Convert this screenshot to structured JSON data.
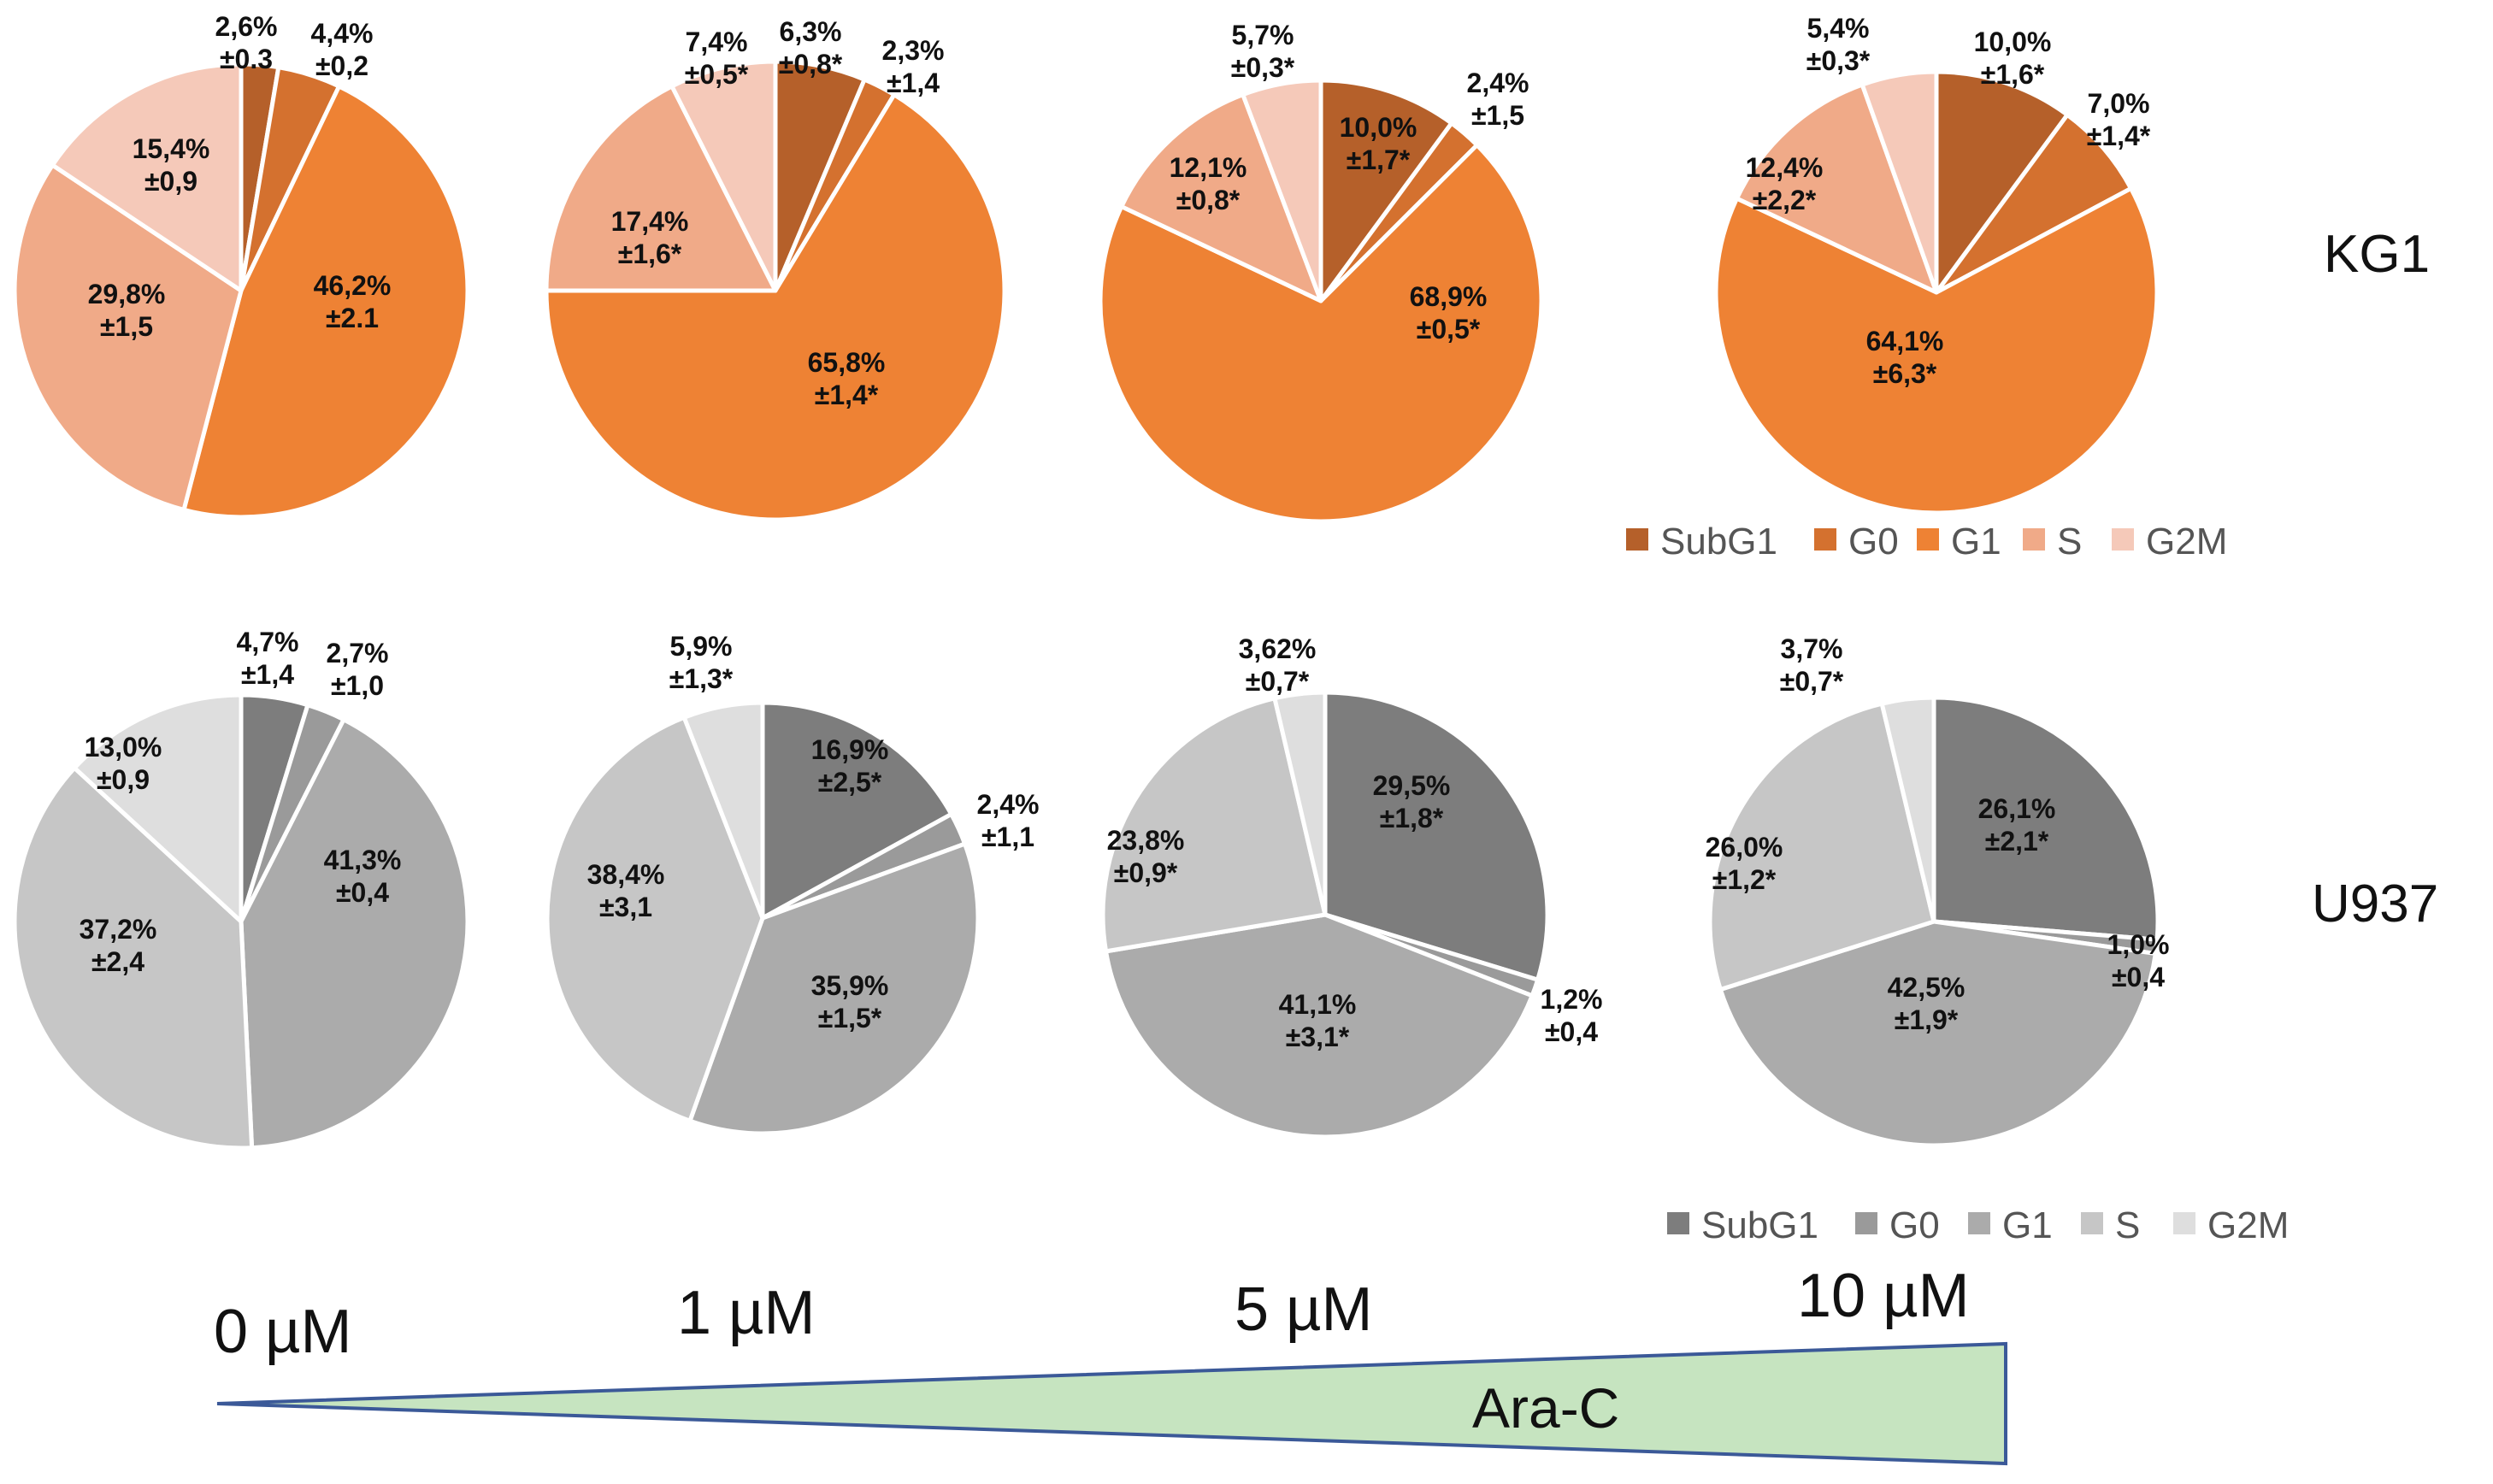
{
  "series_order": [
    "SubG1",
    "G0",
    "G1",
    "S",
    "G2M"
  ],
  "chart_data": [
    {
      "type": "pie",
      "row": "KG1",
      "dose": "0 µM",
      "slices": [
        {
          "name": "SubG1",
          "value": 2.6,
          "label": "2,6%",
          "sd": "±0.3"
        },
        {
          "name": "G0",
          "value": 4.4,
          "label": "4,4%",
          "sd": "±0,2"
        },
        {
          "name": "G1",
          "value": 46.2,
          "label": "46,2%",
          "sd": "±2.1"
        },
        {
          "name": "S",
          "value": 29.8,
          "label": "29,8%",
          "sd": "±1,5"
        },
        {
          "name": "G2M",
          "value": 15.4,
          "label": "15,4%",
          "sd": "±0,9"
        }
      ]
    },
    {
      "type": "pie",
      "row": "KG1",
      "dose": "1 µM",
      "slices": [
        {
          "name": "SubG1",
          "value": 6.3,
          "label": "6,3%",
          "sd": "±0,8*"
        },
        {
          "name": "G0",
          "value": 2.3,
          "label": "2,3%",
          "sd": "±1,4"
        },
        {
          "name": "G1",
          "value": 65.8,
          "label": "65,8%",
          "sd": "±1,4*"
        },
        {
          "name": "S",
          "value": 17.4,
          "label": "17,4%",
          "sd": "±1,6*"
        },
        {
          "name": "G2M",
          "value": 7.4,
          "label": "7,4%",
          "sd": "±0,5*"
        }
      ]
    },
    {
      "type": "pie",
      "row": "KG1",
      "dose": "5 µM",
      "slices": [
        {
          "name": "SubG1",
          "value": 10.0,
          "label": "10,0%",
          "sd": "±1,7*"
        },
        {
          "name": "G0",
          "value": 2.4,
          "label": "2,4%",
          "sd": "±1,5"
        },
        {
          "name": "G1",
          "value": 68.9,
          "label": "68,9%",
          "sd": "±0,5*"
        },
        {
          "name": "S",
          "value": 12.1,
          "label": "12,1%",
          "sd": "±0,8*"
        },
        {
          "name": "G2M",
          "value": 5.7,
          "label": "5,7%",
          "sd": "±0,3*"
        }
      ]
    },
    {
      "type": "pie",
      "row": "KG1",
      "dose": "10 µM",
      "slices": [
        {
          "name": "SubG1",
          "value": 10.0,
          "label": "10,0%",
          "sd": "±1,6*"
        },
        {
          "name": "G0",
          "value": 7.0,
          "label": "7,0%",
          "sd": "±1,4*"
        },
        {
          "name": "G1",
          "value": 64.1,
          "label": "64,1%",
          "sd": "±6,3*"
        },
        {
          "name": "S",
          "value": 12.4,
          "label": "12,4%",
          "sd": "±2,2*"
        },
        {
          "name": "G2M",
          "value": 5.4,
          "label": "5,4%",
          "sd": "±0,3*"
        }
      ]
    },
    {
      "type": "pie",
      "row": "U937",
      "dose": "0 µM",
      "slices": [
        {
          "name": "SubG1",
          "value": 4.7,
          "label": "4,7%",
          "sd": "±1,4"
        },
        {
          "name": "G0",
          "value": 2.7,
          "label": "2,7%",
          "sd": "±1,0"
        },
        {
          "name": "G1",
          "value": 41.3,
          "label": "41,3%",
          "sd": "±0,4"
        },
        {
          "name": "S",
          "value": 37.2,
          "label": "37,2%",
          "sd": "±2,4"
        },
        {
          "name": "G2M",
          "value": 13.0,
          "label": "13,0%",
          "sd": "±0,9"
        }
      ]
    },
    {
      "type": "pie",
      "row": "U937",
      "dose": "1 µM",
      "slices": [
        {
          "name": "SubG1",
          "value": 16.9,
          "label": "16,9%",
          "sd": "±2,5*"
        },
        {
          "name": "G0",
          "value": 2.4,
          "label": "2,4%",
          "sd": "±1,1"
        },
        {
          "name": "G1",
          "value": 35.9,
          "label": "35,9%",
          "sd": "±1,5*"
        },
        {
          "name": "S",
          "value": 38.4,
          "label": "38,4%",
          "sd": "±3,1"
        },
        {
          "name": "G2M",
          "value": 5.9,
          "label": "5,9%",
          "sd": "±1,3*"
        }
      ]
    },
    {
      "type": "pie",
      "row": "U937",
      "dose": "5 µM",
      "slices": [
        {
          "name": "SubG1",
          "value": 29.5,
          "label": "29,5%",
          "sd": "±1,8*"
        },
        {
          "name": "G0",
          "value": 1.2,
          "label": "1,2%",
          "sd": "±0,4"
        },
        {
          "name": "G1",
          "value": 41.1,
          "label": "41,1%",
          "sd": "±3,1*"
        },
        {
          "name": "S",
          "value": 23.8,
          "label": "23,8%",
          "sd": "±0,9*"
        },
        {
          "name": "G2M",
          "value": 3.62,
          "label": "3,62%",
          "sd": "±0,7*"
        }
      ]
    },
    {
      "type": "pie",
      "row": "U937",
      "dose": "10 µM",
      "slices": [
        {
          "name": "SubG1",
          "value": 26.1,
          "label": "26,1%",
          "sd": "±2,1*"
        },
        {
          "name": "G0",
          "value": 1.0,
          "label": "1,0%",
          "sd": "±0,4"
        },
        {
          "name": "G1",
          "value": 42.5,
          "label": "42,5%",
          "sd": "±1,9*"
        },
        {
          "name": "S",
          "value": 26.0,
          "label": "26,0%",
          "sd": "±1,2*"
        },
        {
          "name": "G2M",
          "value": 3.7,
          "label": "3,7%",
          "sd": "±0,7*"
        }
      ]
    }
  ],
  "colors": {
    "KG1": [
      "#b5602a",
      "#d4712f",
      "#ee8234",
      "#f0aa88",
      "#f5c9b9"
    ],
    "U937": [
      "#7d7d7d",
      "#9a9a9a",
      "#ababab",
      "#c6c6c6",
      "#dedede"
    ],
    "ramp_fill": "#c6e4c0",
    "ramp_stroke": "#3b5998"
  },
  "row_labels": {
    "kg1": "KG1",
    "u937": "U937"
  },
  "legend": {
    "kg1": [
      "SubG1",
      "G0",
      "G1",
      "S",
      "G2M"
    ],
    "u937": [
      "SubG1",
      "G0",
      "G1",
      "S",
      "G2M"
    ]
  },
  "doses": [
    "0 µM",
    "1 µM",
    "5 µM",
    "10 µM"
  ],
  "drug": "Ara-C"
}
